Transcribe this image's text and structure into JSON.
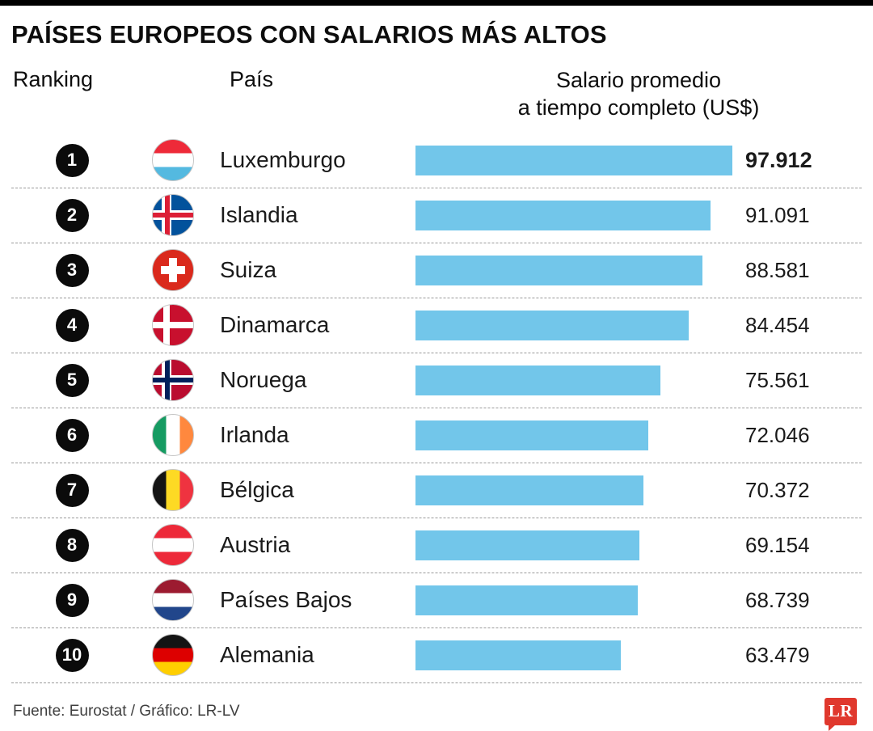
{
  "title": "PAÍSES EUROPEOS CON SALARIOS MÁS ALTOS",
  "columns": {
    "ranking": "Ranking",
    "country": "País",
    "salary_line1": "Salario promedio",
    "salary_line2": "a tiempo completo (US$)"
  },
  "chart_data": {
    "type": "bar",
    "orientation": "horizontal",
    "title": "PAÍSES EUROPEOS CON SALARIOS MÁS ALTOS",
    "categories": [
      "Luxemburgo",
      "Islandia",
      "Suiza",
      "Dinamarca",
      "Noruega",
      "Irlanda",
      "Bélgica",
      "Austria",
      "Países Bajos",
      "Alemania"
    ],
    "values": [
      97912,
      91091,
      88581,
      84454,
      75561,
      72046,
      70372,
      69154,
      68739,
      63479
    ],
    "value_labels": [
      "97.912",
      "91.091",
      "88.581",
      "84.454",
      "75.561",
      "72.046",
      "70.372",
      "69.154",
      "68.739",
      "63.479"
    ],
    "xlabel": "Salario promedio a tiempo completo (US$)",
    "ylabel": "País",
    "xlim": [
      0,
      97912
    ],
    "grid": false,
    "legend": false,
    "bar_color": "#72c6ea"
  },
  "rows": [
    {
      "rank": "1",
      "country": "Luxemburgo",
      "flag": "luxembourg",
      "flag_name": "flag-luxembourg-icon",
      "value": 97912,
      "label": "97.912"
    },
    {
      "rank": "2",
      "country": "Islandia",
      "flag": "iceland",
      "flag_name": "flag-iceland-icon",
      "value": 91091,
      "label": "91.091"
    },
    {
      "rank": "3",
      "country": "Suiza",
      "flag": "switzerland",
      "flag_name": "flag-switzerland-icon",
      "value": 88581,
      "label": "88.581"
    },
    {
      "rank": "4",
      "country": "Dinamarca",
      "flag": "denmark",
      "flag_name": "flag-denmark-icon",
      "value": 84454,
      "label": "84.454"
    },
    {
      "rank": "5",
      "country": "Noruega",
      "flag": "norway",
      "flag_name": "flag-norway-icon",
      "value": 75561,
      "label": "75.561"
    },
    {
      "rank": "6",
      "country": "Irlanda",
      "flag": "ireland",
      "flag_name": "flag-ireland-icon",
      "value": 72046,
      "label": "72.046"
    },
    {
      "rank": "7",
      "country": "Bélgica",
      "flag": "belgium",
      "flag_name": "flag-belgium-icon",
      "value": 70372,
      "label": "70.372"
    },
    {
      "rank": "8",
      "country": "Austria",
      "flag": "austria",
      "flag_name": "flag-austria-icon",
      "value": 69154,
      "label": "69.154"
    },
    {
      "rank": "9",
      "country": "Países Bajos",
      "flag": "netherlands",
      "flag_name": "flag-netherlands-icon",
      "value": 68739,
      "label": "68.739"
    },
    {
      "rank": "10",
      "country": "Alemania",
      "flag": "germany",
      "flag_name": "flag-germany-icon",
      "value": 63479,
      "label": "63.479"
    }
  ],
  "footer": {
    "source": "Fuente: Eurostat / Gráfico: LR-LV",
    "logo_text": "LR",
    "logo_color": "#e0382d"
  }
}
